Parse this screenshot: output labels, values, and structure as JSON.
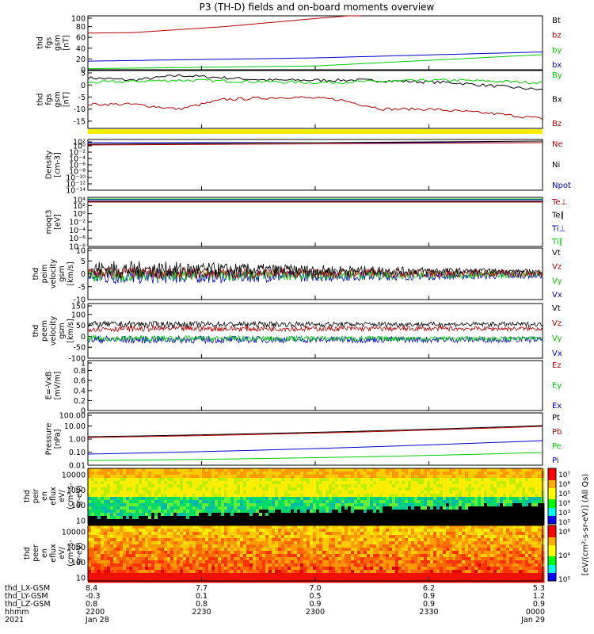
{
  "title": "P3 (TH-D) fields and on-board moments overview",
  "colors": {
    "black": "#000000",
    "red": "#b00000",
    "blue": "#0000cc",
    "green": "#00cc00",
    "yellow": "#ffee00"
  },
  "chart_data": [
    {
      "type": "line",
      "id": "fgs-mag",
      "ylabel": [
        "thd",
        "fgs",
        "gsm",
        "[nT]"
      ],
      "ylim": [
        0,
        100
      ],
      "yticks": [
        0,
        20,
        40,
        60,
        80,
        100
      ],
      "legend": [
        {
          "name": "Bt",
          "color": "black"
        },
        {
          "name": "bz",
          "color": "red"
        },
        {
          "name": "by",
          "color": "green"
        },
        {
          "name": "bx",
          "color": "blue"
        }
      ],
      "series": [
        {
          "name": "bz",
          "color": "red",
          "x": [
            0,
            0.1,
            0.3,
            0.5,
            0.6
          ],
          "y": [
            68,
            69,
            80,
            95,
            102
          ]
        },
        {
          "name": "bx",
          "color": "blue",
          "x": [
            0,
            0.5,
            1
          ],
          "y": [
            16,
            22,
            33
          ]
        },
        {
          "name": "by",
          "color": "green",
          "x": [
            0,
            0.5,
            1
          ],
          "y": [
            2,
            7,
            28
          ]
        }
      ]
    },
    {
      "type": "line",
      "id": "fgs-comp",
      "ylabel": [
        "thd",
        "fgs",
        "gsm",
        "[nT]"
      ],
      "ylim": [
        -18,
        6
      ],
      "yticks": [
        -15,
        -10,
        -5,
        0,
        5
      ],
      "legend": [
        {
          "name": "By",
          "color": "green"
        },
        {
          "name": "Bx",
          "color": "black"
        },
        {
          "name": "Bz",
          "color": "red"
        }
      ],
      "series": [
        {
          "name": "Bx",
          "color": "black",
          "x": [
            0,
            0.1,
            0.2,
            0.4,
            0.6,
            0.8,
            1
          ],
          "y": [
            3,
            2,
            4,
            2,
            2,
            1,
            -2
          ]
        },
        {
          "name": "By",
          "color": "green",
          "x": [
            0,
            0.2,
            0.5,
            0.8,
            1
          ],
          "y": [
            1,
            2,
            1,
            2,
            1
          ]
        },
        {
          "name": "Bz",
          "color": "red",
          "x": [
            0,
            0.1,
            0.2,
            0.3,
            0.45,
            0.55,
            0.65,
            0.75,
            0.9,
            1
          ],
          "y": [
            -8,
            -8,
            -10,
            -6,
            -5,
            -6,
            -10,
            -10,
            -12,
            -14
          ]
        }
      ]
    },
    {
      "type": "line",
      "id": "density",
      "ylabel": [
        "Density",
        "[cm-3]"
      ],
      "ylog": true,
      "ylim": [
        1e-14,
        100.0
      ],
      "ytick_labels": [
        "10²",
        "10⁰",
        "10⁻²",
        "10⁻⁴",
        "10⁻⁶",
        "10⁻⁸",
        "10⁻¹⁰",
        "10⁻¹²",
        "10⁻¹⁴"
      ],
      "legend": [
        {
          "name": "Ne",
          "color": "red"
        },
        {
          "name": "Ni",
          "color": "black"
        },
        {
          "name": "Npot",
          "color": "blue"
        }
      ]
    },
    {
      "type": "line",
      "id": "temperature",
      "ylabel": [
        "moqt3",
        "[eV]"
      ],
      "ylog": true,
      "ytick_labels": [
        "10⁴",
        "10²",
        "10⁰",
        "10⁻²",
        "10⁻⁴",
        "10⁻⁶",
        "10⁻⁸"
      ],
      "legend": [
        {
          "name": "Te⊥",
          "color": "red"
        },
        {
          "name": "Te∥",
          "color": "black"
        },
        {
          "name": "Ti⊥",
          "color": "blue"
        },
        {
          "name": "Ti∥",
          "color": "green"
        }
      ]
    },
    {
      "type": "line",
      "id": "peim-vel",
      "ylabel": [
        "thd",
        "peim",
        "velocity",
        "gsm",
        "[km/s]"
      ],
      "ylim": [
        -10,
        10
      ],
      "yticks": [
        -10,
        -5,
        0,
        5,
        10
      ],
      "legend": [
        {
          "name": "Vt",
          "color": "black"
        },
        {
          "name": "Vz",
          "color": "red"
        },
        {
          "name": "Vy",
          "color": "green"
        },
        {
          "name": "Vx",
          "color": "blue"
        }
      ]
    },
    {
      "type": "line",
      "id": "peem-vel",
      "ylabel": [
        "thd",
        "peem",
        "velocity",
        "gsm",
        "[km/s]"
      ],
      "ylim": [
        -100,
        150
      ],
      "yticks": [
        -100,
        -50,
        0,
        50,
        100,
        150
      ],
      "legend": [
        {
          "name": "Vt",
          "color": "black"
        },
        {
          "name": "Vz",
          "color": "red"
        },
        {
          "name": "Vy",
          "color": "green"
        },
        {
          "name": "Vx",
          "color": "blue"
        }
      ]
    },
    {
      "type": "line",
      "id": "efield",
      "ylabel": [
        "E=-VxB",
        "[mV/m]"
      ],
      "ylim": [
        0,
        1
      ],
      "yticks": [
        0,
        0.2,
        0.4,
        0.6,
        0.8,
        1.0
      ],
      "legend": [
        {
          "name": "Ez",
          "color": "red"
        },
        {
          "name": "Ey",
          "color": "green"
        },
        {
          "name": "Ex",
          "color": "blue"
        }
      ]
    },
    {
      "type": "line",
      "id": "pressure",
      "ylabel": [
        "Pressure",
        "[nPa]"
      ],
      "ylog": true,
      "ytick_labels": [
        "100.00",
        "10.00",
        "1.00",
        "0.10",
        "0.01"
      ],
      "legend": [
        {
          "name": "Pt",
          "color": "black"
        },
        {
          "name": "Pb",
          "color": "red"
        },
        {
          "name": "Pe",
          "color": "green"
        },
        {
          "name": "Pi",
          "color": "blue"
        }
      ]
    },
    {
      "type": "heatmap",
      "id": "peir",
      "ylabel": [
        "thd",
        "peir",
        "en",
        "eflux",
        "eV/",
        "(cm²-s-",
        "sr-eV)"
      ],
      "ytick_labels": [
        "10000",
        "1000",
        "100",
        "10"
      ]
    },
    {
      "type": "heatmap",
      "id": "peer",
      "ylabel": [
        "thd",
        "peer",
        "en",
        "eflux",
        "eV/",
        "(cm²-s-",
        "sr-eV)"
      ],
      "ytick_labels": [
        "10000",
        "1000",
        "100",
        "10"
      ]
    }
  ],
  "colorbar": {
    "label": "[eV/(cm²-s-sr-eV)] (All Qs)",
    "ticks": [
      "10⁷",
      "10⁶",
      "10⁵",
      "10⁴",
      "10³",
      "10²",
      "10⁶",
      "10⁴",
      "10²"
    ]
  },
  "xaxis": {
    "rows": [
      {
        "label": "thd_LX-GSM",
        "values": [
          "8.4",
          "7.7",
          "7.0",
          "6.2",
          "5.3"
        ]
      },
      {
        "label": "thd_LY-GSM",
        "values": [
          "-0.3",
          "0.1",
          "0.5",
          "0.9",
          "1.2"
        ]
      },
      {
        "label": "thd_LZ-GSM",
        "values": [
          "0.8",
          "0.8",
          "0.9",
          "0.9",
          "0.9"
        ]
      },
      {
        "label": "hhmm",
        "values": [
          "2200",
          "2230",
          "2300",
          "2330",
          "0000"
        ]
      },
      {
        "label": "2021",
        "values": [
          "Jan 28",
          "",
          "",
          "",
          "Jan 29"
        ]
      }
    ]
  }
}
